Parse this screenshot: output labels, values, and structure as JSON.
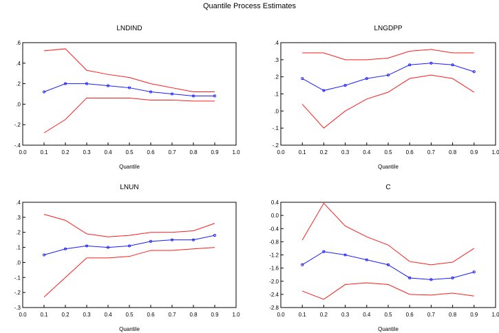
{
  "figure_title": "Quantile Process Estimates",
  "colors": {
    "estimate": "#1a1aff",
    "band": "#ff1a1a",
    "axis": "#000000"
  },
  "chart_data": [
    {
      "type": "line",
      "title": "LNDIND",
      "xlabel": "Quantile",
      "x": [
        0.1,
        0.2,
        0.3,
        0.4,
        0.5,
        0.6,
        0.7,
        0.8,
        0.9
      ],
      "xlim": [
        0.0,
        1.0
      ],
      "ylim": [
        -0.4,
        0.6
      ],
      "xticks": [
        "0.0",
        "0.1",
        "0.2",
        "0.3",
        "0.4",
        "0.5",
        "0.6",
        "0.7",
        "0.8",
        "0.9",
        "1.0"
      ],
      "yticks": [
        {
          "v": 0.6,
          "label": ".6"
        },
        {
          "v": 0.4,
          "label": ".4"
        },
        {
          "v": 0.2,
          "label": ".2"
        },
        {
          "v": 0.0,
          "label": ".0"
        },
        {
          "v": -0.2,
          "label": "-.2"
        },
        {
          "v": -0.4,
          "label": "-.4"
        }
      ],
      "series": [
        {
          "role": "upper",
          "values": [
            0.52,
            0.54,
            0.33,
            0.29,
            0.26,
            0.2,
            0.16,
            0.12,
            0.12
          ]
        },
        {
          "role": "estimate",
          "values": [
            0.12,
            0.2,
            0.2,
            0.18,
            0.16,
            0.12,
            0.1,
            0.08,
            0.08
          ]
        },
        {
          "role": "lower",
          "values": [
            -0.28,
            -0.15,
            0.06,
            0.06,
            0.06,
            0.04,
            0.04,
            0.03,
            0.03
          ]
        }
      ]
    },
    {
      "type": "line",
      "title": "LNGDPP",
      "xlabel": "Quantile",
      "x": [
        0.1,
        0.2,
        0.3,
        0.4,
        0.5,
        0.6,
        0.7,
        0.8,
        0.9
      ],
      "xlim": [
        0.0,
        1.0
      ],
      "ylim": [
        -0.2,
        0.4
      ],
      "xticks": [
        "0.0",
        "0.1",
        "0.2",
        "0.3",
        "0.4",
        "0.5",
        "0.6",
        "0.7",
        "0.8",
        "0.9",
        "1.0"
      ],
      "yticks": [
        {
          "v": 0.4,
          "label": ".4"
        },
        {
          "v": 0.3,
          "label": ".3"
        },
        {
          "v": 0.2,
          "label": ".2"
        },
        {
          "v": 0.1,
          "label": ".1"
        },
        {
          "v": 0.0,
          "label": ".0"
        },
        {
          "v": -0.1,
          "label": "-.1"
        },
        {
          "v": -0.2,
          "label": "-.2"
        }
      ],
      "series": [
        {
          "role": "upper",
          "values": [
            0.34,
            0.34,
            0.3,
            0.3,
            0.31,
            0.35,
            0.36,
            0.34,
            0.34
          ]
        },
        {
          "role": "estimate",
          "values": [
            0.19,
            0.12,
            0.15,
            0.19,
            0.21,
            0.27,
            0.28,
            0.27,
            0.23
          ]
        },
        {
          "role": "lower",
          "values": [
            0.04,
            -0.1,
            0.0,
            0.07,
            0.11,
            0.19,
            0.21,
            0.19,
            0.11
          ]
        }
      ]
    },
    {
      "type": "line",
      "title": "LNUN",
      "xlabel": "Quantile",
      "x": [
        0.1,
        0.2,
        0.3,
        0.4,
        0.5,
        0.6,
        0.7,
        0.8,
        0.9
      ],
      "xlim": [
        0.0,
        1.0
      ],
      "ylim": [
        -0.3,
        0.4
      ],
      "xticks": [
        "0.0",
        "0.1",
        "0.2",
        "0.3",
        "0.4",
        "0.5",
        "0.6",
        "0.7",
        "0.8",
        "0.9",
        "1.0"
      ],
      "yticks": [
        {
          "v": 0.4,
          "label": ".4"
        },
        {
          "v": 0.3,
          "label": ".3"
        },
        {
          "v": 0.2,
          "label": ".2"
        },
        {
          "v": 0.1,
          "label": ".1"
        },
        {
          "v": 0.0,
          "label": ".0"
        },
        {
          "v": -0.1,
          "label": "-.1"
        },
        {
          "v": -0.2,
          "label": "-.2"
        },
        {
          "v": -0.3,
          "label": "-.3"
        }
      ],
      "series": [
        {
          "role": "upper",
          "values": [
            0.32,
            0.28,
            0.19,
            0.17,
            0.18,
            0.2,
            0.2,
            0.21,
            0.26
          ]
        },
        {
          "role": "estimate",
          "values": [
            0.05,
            0.09,
            0.11,
            0.1,
            0.11,
            0.14,
            0.15,
            0.15,
            0.18
          ]
        },
        {
          "role": "lower",
          "values": [
            -0.23,
            -0.1,
            0.03,
            0.03,
            0.04,
            0.08,
            0.08,
            0.09,
            0.1
          ]
        }
      ]
    },
    {
      "type": "line",
      "title": "C",
      "xlabel": "Quantile",
      "x": [
        0.1,
        0.2,
        0.3,
        0.4,
        0.5,
        0.6,
        0.7,
        0.8,
        0.9
      ],
      "xlim": [
        0.0,
        1.0
      ],
      "ylim": [
        -2.8,
        0.4
      ],
      "xticks": [
        "0.0",
        "0.1",
        "0.2",
        "0.3",
        "0.4",
        "0.5",
        "0.6",
        "0.7",
        "0.8",
        "0.9",
        "1.0"
      ],
      "yticks": [
        {
          "v": 0.4,
          "label": "0.4"
        },
        {
          "v": 0.0,
          "label": "0.0"
        },
        {
          "v": -0.4,
          "label": "-0.4"
        },
        {
          "v": -0.8,
          "label": "-0.8"
        },
        {
          "v": -1.2,
          "label": "-1.2"
        },
        {
          "v": -1.6,
          "label": "-1.6"
        },
        {
          "v": -2.0,
          "label": "-2.0"
        },
        {
          "v": -2.4,
          "label": "-2.4"
        },
        {
          "v": -2.8,
          "label": "-2.8"
        }
      ],
      "series": [
        {
          "role": "upper",
          "values": [
            -0.75,
            0.37,
            -0.32,
            -0.65,
            -0.9,
            -1.4,
            -1.5,
            -1.42,
            -1.0
          ]
        },
        {
          "role": "estimate",
          "values": [
            -1.5,
            -1.1,
            -1.2,
            -1.35,
            -1.5,
            -1.9,
            -1.95,
            -1.9,
            -1.72
          ]
        },
        {
          "role": "lower",
          "values": [
            -2.3,
            -2.55,
            -2.1,
            -2.05,
            -2.1,
            -2.4,
            -2.42,
            -2.36,
            -2.45
          ]
        }
      ]
    }
  ]
}
